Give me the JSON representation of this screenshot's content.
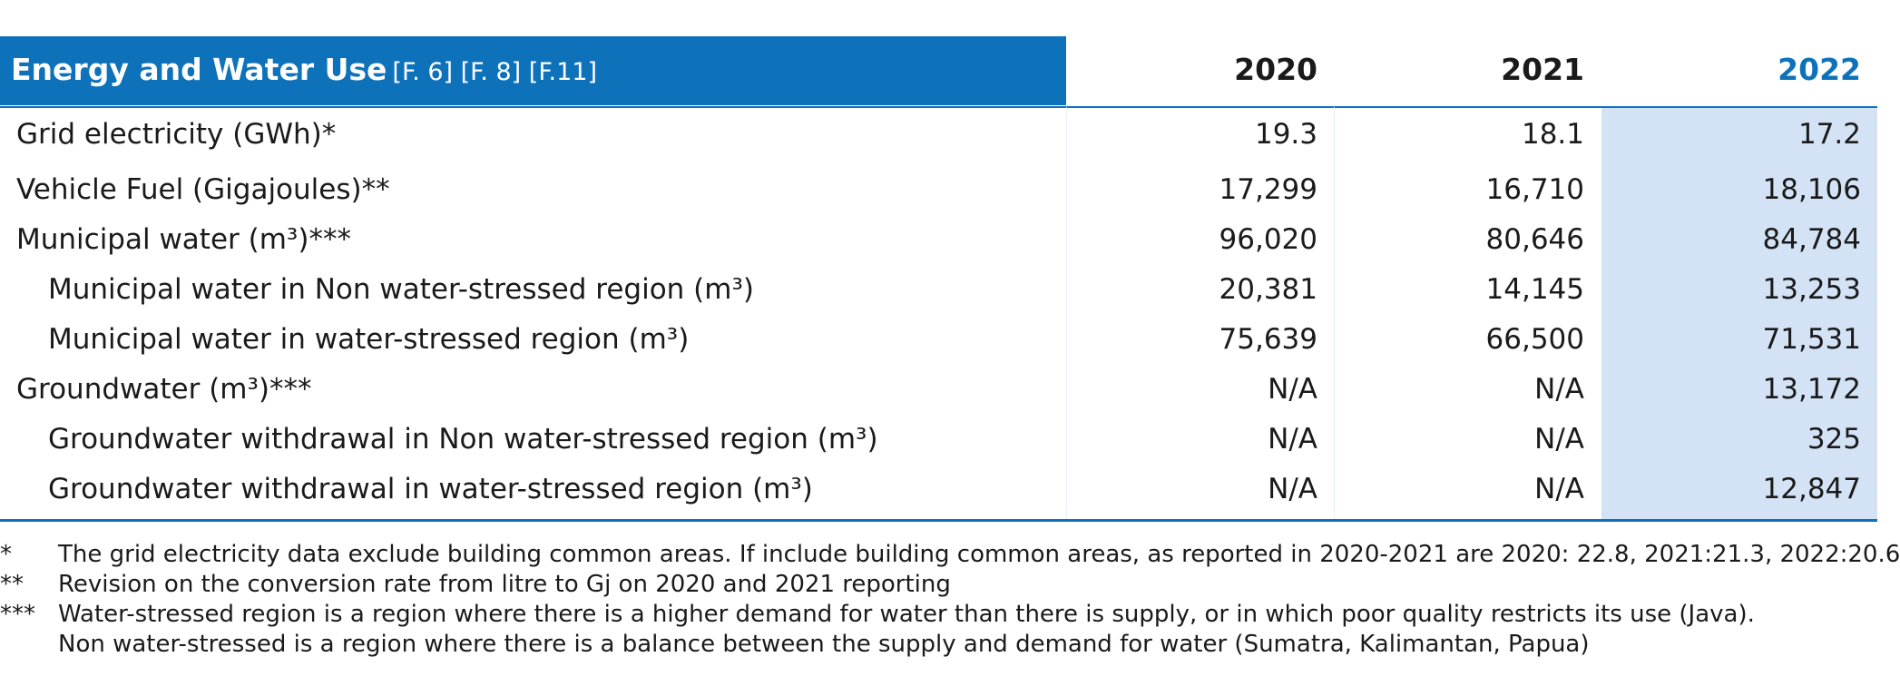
{
  "table": {
    "title": "Energy and Water Use",
    "title_refs": "[F. 6] [F. 8] [F.11]",
    "years": [
      "2020",
      "2021",
      "2022"
    ],
    "rows": [
      {
        "label": "Grid electricity (GWh)*",
        "v2020": "19.3",
        "v2021": "18.1",
        "v2022": "17.2"
      },
      {
        "label": "Vehicle Fuel (Gigajoules)**",
        "v2020": "17,299",
        "v2021": "16,710",
        "v2022": "18,106"
      },
      {
        "label": "Municipal water (m³)***",
        "v2020": "96,020",
        "v2021": "80,646",
        "v2022": "84,784"
      },
      {
        "label": "Municipal water in Non water-stressed region (m³)",
        "v2020": "20,381",
        "v2021": "14,145",
        "v2022": "13,253"
      },
      {
        "label": "Municipal water in water-stressed region (m³)",
        "v2020": "75,639",
        "v2021": "66,500",
        "v2022": "71,531"
      },
      {
        "label": "Groundwater (m³)***",
        "v2020": "N/A",
        "v2021": "N/A",
        "v2022": "13,172"
      },
      {
        "label": "Groundwater withdrawal in Non water-stressed region (m³)",
        "v2020": "N/A",
        "v2021": "N/A",
        "v2022": "325"
      },
      {
        "label": "Groundwater withdrawal in water-stressed region (m³)",
        "v2020": "N/A",
        "v2021": "N/A",
        "v2022": "12,847"
      }
    ]
  },
  "notes": [
    {
      "mark": "*",
      "text": "The grid electricity data exclude building common areas. If include building common areas, as reported in 2020-2021 are 2020: 22.8, 2021:21.3, 2022:20.6"
    },
    {
      "mark": "**",
      "text": "Revision on the conversion rate from litre to Gj on 2020 and 2021 reporting"
    },
    {
      "mark": "***",
      "text": "Water-stressed region is a region where there is a higher demand for water than there is supply, or in which poor quality restricts its use (Java).",
      "continuation": "Non water-stressed is a region where there is a balance between the supply and demand for water (Sumatra, Kalimantan, Papua)"
    }
  ]
}
